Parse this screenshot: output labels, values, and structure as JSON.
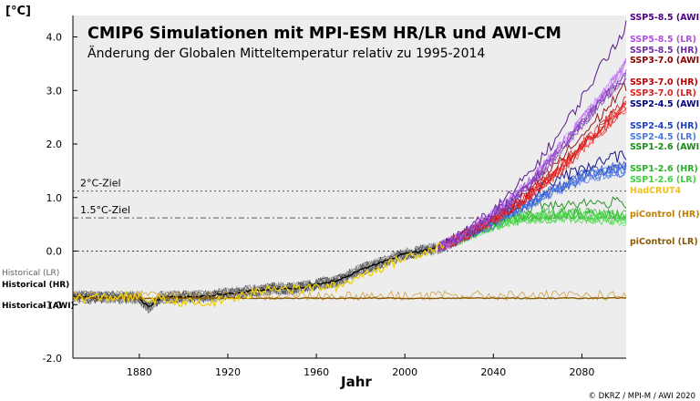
{
  "chart_data": {
    "type": "line",
    "title": "CMIP6 Simulationen mit MPI-ESM HR/LR und AWI-CM",
    "subtitle": "Änderung der Globalen Mitteltemperatur relativ zu 1995-2014",
    "xlabel": "Jahr",
    "ylabel": "[°C]",
    "xlim": [
      1850,
      2100
    ],
    "ylim": [
      -2.0,
      4.4
    ],
    "x_ticks": [
      1880,
      1920,
      1960,
      2000,
      2040,
      2080
    ],
    "y_ticks": [
      {
        "value": 4.0,
        "label": "4.0"
      },
      {
        "value": 3.0,
        "label": "3.0"
      },
      {
        "value": 2.0,
        "label": "2.0"
      },
      {
        "value": 1.0,
        "label": "1.0"
      },
      {
        "value": 0.0,
        "label": "0.0"
      },
      {
        "value": -1.0,
        "label": "-1.0"
      },
      {
        "value": -2.0,
        "label": "-2.0"
      }
    ],
    "grid": false,
    "reference_lines": [
      {
        "label": "2°C-Ziel",
        "value": 1.12,
        "style": "dotted"
      },
      {
        "label": "1.5°C-Ziel",
        "value": 0.62,
        "style": "dashdot"
      },
      {
        "label": "",
        "value": 0.0,
        "style": "dotted"
      }
    ],
    "historical": {
      "x": [
        1850,
        1860,
        1870,
        1880,
        1884,
        1890,
        1900,
        1910,
        1920,
        1930,
        1940,
        1950,
        1960,
        1970,
        1980,
        1990,
        2000,
        2010,
        2014
      ],
      "y": [
        -0.85,
        -0.87,
        -0.86,
        -0.87,
        -1.05,
        -0.86,
        -0.86,
        -0.85,
        -0.8,
        -0.75,
        -0.7,
        -0.7,
        -0.62,
        -0.55,
        -0.35,
        -0.2,
        -0.05,
        0.02,
        0.05
      ]
    },
    "hadcrut4": {
      "name": "HadCRUT4",
      "x": [
        1850,
        1860,
        1870,
        1880,
        1890,
        1900,
        1910,
        1920,
        1930,
        1940,
        1950,
        1960,
        1970,
        1980,
        1990,
        2000,
        2010,
        2018
      ],
      "y": [
        -0.88,
        -0.88,
        -0.85,
        -0.88,
        -0.92,
        -0.95,
        -1.0,
        -0.9,
        -0.82,
        -0.65,
        -0.72,
        -0.68,
        -0.66,
        -0.45,
        -0.3,
        -0.12,
        0.0,
        0.15
      ]
    },
    "picontrol": {
      "hr": {
        "name": "piControl (HR)",
        "x": [
          1850,
          2100
        ],
        "y": [
          -0.83,
          -0.83
        ]
      },
      "lr": {
        "name": "piControl (LR)",
        "x": [
          1850,
          2100
        ],
        "y": [
          -0.88,
          -0.88
        ]
      }
    },
    "scenarios": [
      {
        "name": "SSP5-8.5 (AWI)",
        "x": [
          2015,
          2030,
          2040,
          2050,
          2060,
          2070,
          2080,
          2090,
          2100
        ],
        "y": [
          0.05,
          0.45,
          0.75,
          1.15,
          1.65,
          2.2,
          2.85,
          3.55,
          4.2
        ]
      },
      {
        "name": "SSP5-8.5 (LR)",
        "x": [
          2015,
          2030,
          2040,
          2050,
          2060,
          2070,
          2080,
          2090,
          2100
        ],
        "y": [
          0.05,
          0.4,
          0.7,
          1.05,
          1.45,
          1.95,
          2.45,
          2.95,
          3.5
        ]
      },
      {
        "name": "SSP5-8.5 (HR)",
        "x": [
          2015,
          2030,
          2040,
          2050,
          2060,
          2070,
          2080,
          2090,
          2100
        ],
        "y": [
          0.05,
          0.38,
          0.68,
          1.0,
          1.4,
          1.88,
          2.38,
          2.85,
          3.3
        ]
      },
      {
        "name": "SSP3-7.0 (AWI)",
        "x": [
          2015,
          2030,
          2040,
          2050,
          2060,
          2070,
          2080,
          2090,
          2100
        ],
        "y": [
          0.05,
          0.4,
          0.65,
          0.95,
          1.3,
          1.7,
          2.15,
          2.6,
          3.1
        ]
      },
      {
        "name": "SSP3-7.0 (HR)",
        "x": [
          2015,
          2030,
          2040,
          2050,
          2060,
          2070,
          2080,
          2090,
          2100
        ],
        "y": [
          0.05,
          0.35,
          0.6,
          0.88,
          1.2,
          1.58,
          1.98,
          2.38,
          2.8
        ]
      },
      {
        "name": "SSP3-7.0 (LR)",
        "x": [
          2015,
          2030,
          2040,
          2050,
          2060,
          2070,
          2080,
          2090,
          2100
        ],
        "y": [
          0.05,
          0.35,
          0.58,
          0.85,
          1.15,
          1.5,
          1.9,
          2.3,
          2.7
        ]
      },
      {
        "name": "SSP2-4.5 (AWI)",
        "x": [
          2015,
          2030,
          2040,
          2050,
          2060,
          2070,
          2080,
          2090,
          2100
        ],
        "y": [
          0.05,
          0.4,
          0.65,
          0.9,
          1.15,
          1.35,
          1.55,
          1.7,
          1.8
        ]
      },
      {
        "name": "SSP2-4.5 (HR)",
        "x": [
          2015,
          2030,
          2040,
          2050,
          2060,
          2070,
          2080,
          2090,
          2100
        ],
        "y": [
          0.05,
          0.35,
          0.55,
          0.78,
          1.0,
          1.2,
          1.4,
          1.52,
          1.6
        ]
      },
      {
        "name": "SSP2-4.5 (LR)",
        "x": [
          2015,
          2030,
          2040,
          2050,
          2060,
          2070,
          2080,
          2090,
          2100
        ],
        "y": [
          0.05,
          0.33,
          0.52,
          0.75,
          0.95,
          1.15,
          1.35,
          1.45,
          1.5
        ]
      },
      {
        "name": "SSP1-2.6 (AWI)",
        "x": [
          2015,
          2030,
          2040,
          2050,
          2060,
          2070,
          2080,
          2090,
          2100
        ],
        "y": [
          0.05,
          0.38,
          0.6,
          0.75,
          0.85,
          0.88,
          0.9,
          0.9,
          0.9
        ]
      },
      {
        "name": "SSP1-2.6 (HR)",
        "x": [
          2015,
          2030,
          2040,
          2050,
          2060,
          2070,
          2080,
          2090,
          2100
        ],
        "y": [
          0.05,
          0.33,
          0.5,
          0.62,
          0.68,
          0.7,
          0.7,
          0.68,
          0.65
        ]
      },
      {
        "name": "SSP1-2.6 (LR)",
        "x": [
          2015,
          2030,
          2040,
          2050,
          2060,
          2070,
          2080,
          2090,
          2100
        ],
        "y": [
          0.05,
          0.3,
          0.48,
          0.58,
          0.62,
          0.63,
          0.62,
          0.6,
          0.58
        ]
      }
    ],
    "right_labels": [
      {
        "text": "SSP5-8.5 (AWI)",
        "color": "#4b0082"
      },
      {
        "text": "SSP5-8.5 (LR)",
        "color": "#b050e0"
      },
      {
        "text": "SSP5-8.5 (HR)",
        "color": "#7030a0"
      },
      {
        "text": "SSP3-7.0 (AWI)",
        "color": "#8b0000"
      },
      {
        "text": "SSP3-7.0 (HR)",
        "color": "#c00000"
      },
      {
        "text": "SSP3-7.0 (LR)",
        "color": "#e02020"
      },
      {
        "text": "SSP2-4.5 (AWI)",
        "color": "#000080"
      },
      {
        "text": "SSP2-4.5 (HR)",
        "color": "#1f3fbf"
      },
      {
        "text": "SSP2-4.5 (LR)",
        "color": "#4a78e0"
      },
      {
        "text": "SSP1-2.6 (AWI)",
        "color": "#1a8a1a"
      },
      {
        "text": "SSP1-2.6 (HR)",
        "color": "#2ab02a"
      },
      {
        "text": "SSP1-2.6 (LR)",
        "color": "#40d040"
      },
      {
        "text": "HadCRUT4",
        "color": "#f0c020"
      },
      {
        "text": "piControl (HR)",
        "color": "#c08000"
      },
      {
        "text": "piControl (LR)",
        "color": "#8a5a00"
      }
    ],
    "left_labels": [
      {
        "text": "Historical (LR)",
        "color": "#606060",
        "weight": "normal"
      },
      {
        "text": "Historical (HR)",
        "color": "#000000",
        "weight": "bold"
      },
      {
        "text": "Historical (AWI)",
        "color": "#000000",
        "weight": "bold"
      }
    ],
    "credit": "© DKRZ / MPI-M / AWI 2020",
    "colors": {
      "plot_bg": "#ededed",
      "historical": "#303030",
      "hadcrut4": "#f0d000"
    }
  }
}
